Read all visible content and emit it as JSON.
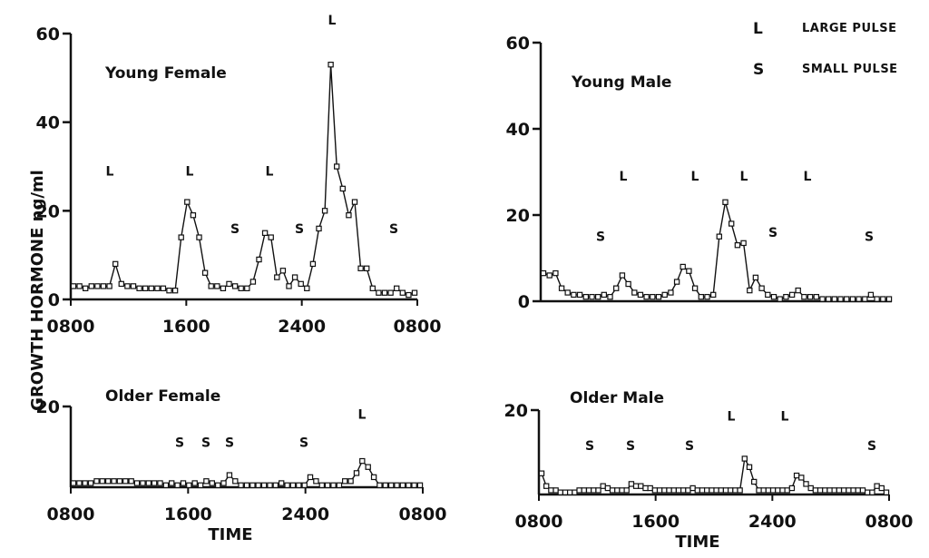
{
  "figure": {
    "y_axis_label": "GROWTH  HORMONE  ng/ml",
    "legend": [
      {
        "key": "L",
        "text": "LARGE PULSE"
      },
      {
        "key": "S",
        "text": "SMALL PULSE"
      }
    ]
  },
  "chart_data": [
    {
      "type": "line",
      "title": "Young Female",
      "xlabel": "",
      "ylim": [
        0,
        60
      ],
      "y_ticks": [
        0,
        20,
        40,
        60
      ],
      "x_ticks": [
        "0800",
        "1600",
        "2400",
        "0800"
      ],
      "series": [
        {
          "values": [
            3,
            3,
            2.5,
            3,
            3,
            3,
            3,
            8,
            3.5,
            3,
            3,
            2.5,
            2.5,
            2.5,
            2.5,
            2.5,
            2,
            2,
            14,
            22,
            19,
            14,
            6,
            3,
            3,
            2.5,
            3.5,
            3,
            2.5,
            2.5,
            4,
            9,
            15,
            14,
            5,
            6.5,
            3,
            5,
            3.5,
            2.5,
            8,
            16,
            20,
            53,
            30,
            25,
            19,
            22,
            7,
            7,
            2.5,
            1.5,
            1.5,
            1.5,
            2.5,
            1.5,
            1,
            1.5
          ]
        }
      ],
      "pulses": [
        {
          "label": "L",
          "value": 28
        },
        {
          "label": "L",
          "value": 28
        },
        {
          "label": "S",
          "value": 15
        },
        {
          "label": "L",
          "value": 28
        },
        {
          "label": "S",
          "value": 15
        },
        {
          "label": "L",
          "value": 62
        },
        {
          "label": "S",
          "value": 15
        }
      ]
    },
    {
      "type": "line",
      "title": "Young Male",
      "xlabel": "",
      "ylim": [
        0,
        60
      ],
      "y_ticks": [
        0,
        20,
        40,
        60
      ],
      "x_ticks": [],
      "series": [
        {
          "values": [
            6.5,
            6,
            6.5,
            3,
            2,
            1.5,
            1.5,
            1,
            1,
            1,
            1.5,
            1,
            3,
            6,
            4,
            2,
            1.5,
            1,
            1,
            1,
            1.5,
            2,
            4.5,
            8,
            7,
            3,
            1,
            1,
            1.5,
            15,
            23,
            18,
            13,
            13.5,
            2.5,
            5.5,
            3,
            1.5,
            1,
            0.5,
            1,
            1.5,
            2.5,
            1,
            1,
            1,
            0.5,
            0.5,
            0.5,
            0.5,
            0.5,
            0.5,
            0.5,
            0.5,
            1.5,
            0.5,
            0.5,
            0.5
          ]
        }
      ],
      "pulses": [
        {
          "label": "S",
          "value": 14
        },
        {
          "label": "L",
          "value": 28
        },
        {
          "label": "L",
          "value": 28
        },
        {
          "label": "L",
          "value": 28
        },
        {
          "label": "S",
          "value": 15
        },
        {
          "label": "L",
          "value": 28
        },
        {
          "label": "S",
          "value": 14
        }
      ]
    },
    {
      "type": "line",
      "title": "Older Female",
      "xlabel": "TIME",
      "ylim": [
        0,
        20
      ],
      "y_ticks": [
        20
      ],
      "x_ticks": [
        "0800",
        "1600",
        "2400",
        "0800"
      ],
      "series": [
        {
          "values": [
            1,
            1,
            1,
            1,
            1.5,
            1.5,
            1.5,
            1.5,
            1.5,
            1.5,
            1.5,
            1,
            1,
            1,
            1,
            1,
            0.5,
            1,
            0.5,
            1,
            0.5,
            1,
            0.5,
            1.5,
            1,
            0.5,
            1,
            3,
            1.5,
            0.5,
            0.5,
            0.5,
            0.5,
            0.5,
            0.5,
            0.5,
            1,
            0.5,
            0.5,
            0.5,
            0.5,
            2.5,
            1.5,
            0.5,
            0.5,
            0.5,
            0.5,
            1.5,
            1.5,
            3.5,
            6.5,
            5,
            2.5,
            0.5,
            0.5,
            0.5,
            0.5,
            0.5,
            0.5,
            0.5,
            0.5
          ]
        }
      ],
      "pulses": [
        {
          "label": "S",
          "value": 10
        },
        {
          "label": "S",
          "value": 10
        },
        {
          "label": "S",
          "value": 10
        },
        {
          "label": "S",
          "value": 10
        },
        {
          "label": "L",
          "value": 17
        }
      ]
    },
    {
      "type": "line",
      "title": "Older Male",
      "xlabel": "TIME",
      "ylim": [
        0,
        20
      ],
      "y_ticks": [
        20
      ],
      "x_ticks": [
        "0800",
        "1600",
        "2400",
        "0800"
      ],
      "series": [
        {
          "values": [
            5,
            2,
            1,
            1,
            0.5,
            0.5,
            0.5,
            0.5,
            1,
            1,
            1,
            1,
            1,
            2,
            1.5,
            1,
            1,
            1,
            1,
            2.5,
            2,
            2,
            1.5,
            1.5,
            1,
            1,
            1,
            1,
            1,
            1,
            1,
            1,
            1.5,
            1,
            1,
            1,
            1,
            1,
            1,
            1,
            1,
            1,
            1,
            8.5,
            6.5,
            3,
            1,
            1,
            1,
            1,
            1,
            1,
            1,
            1.5,
            4.5,
            4,
            2.5,
            1.5,
            1,
            1,
            1,
            1,
            1,
            1,
            1,
            1,
            1,
            1,
            1,
            0.5,
            0.5,
            2,
            1.5,
            0.5
          ]
        }
      ],
      "pulses": [
        {
          "label": "S",
          "value": 10.5
        },
        {
          "label": "S",
          "value": 10.5
        },
        {
          "label": "S",
          "value": 10.5
        },
        {
          "label": "L",
          "value": 17.5
        },
        {
          "label": "L",
          "value": 17.5
        },
        {
          "label": "S",
          "value": 10.5
        }
      ]
    }
  ]
}
